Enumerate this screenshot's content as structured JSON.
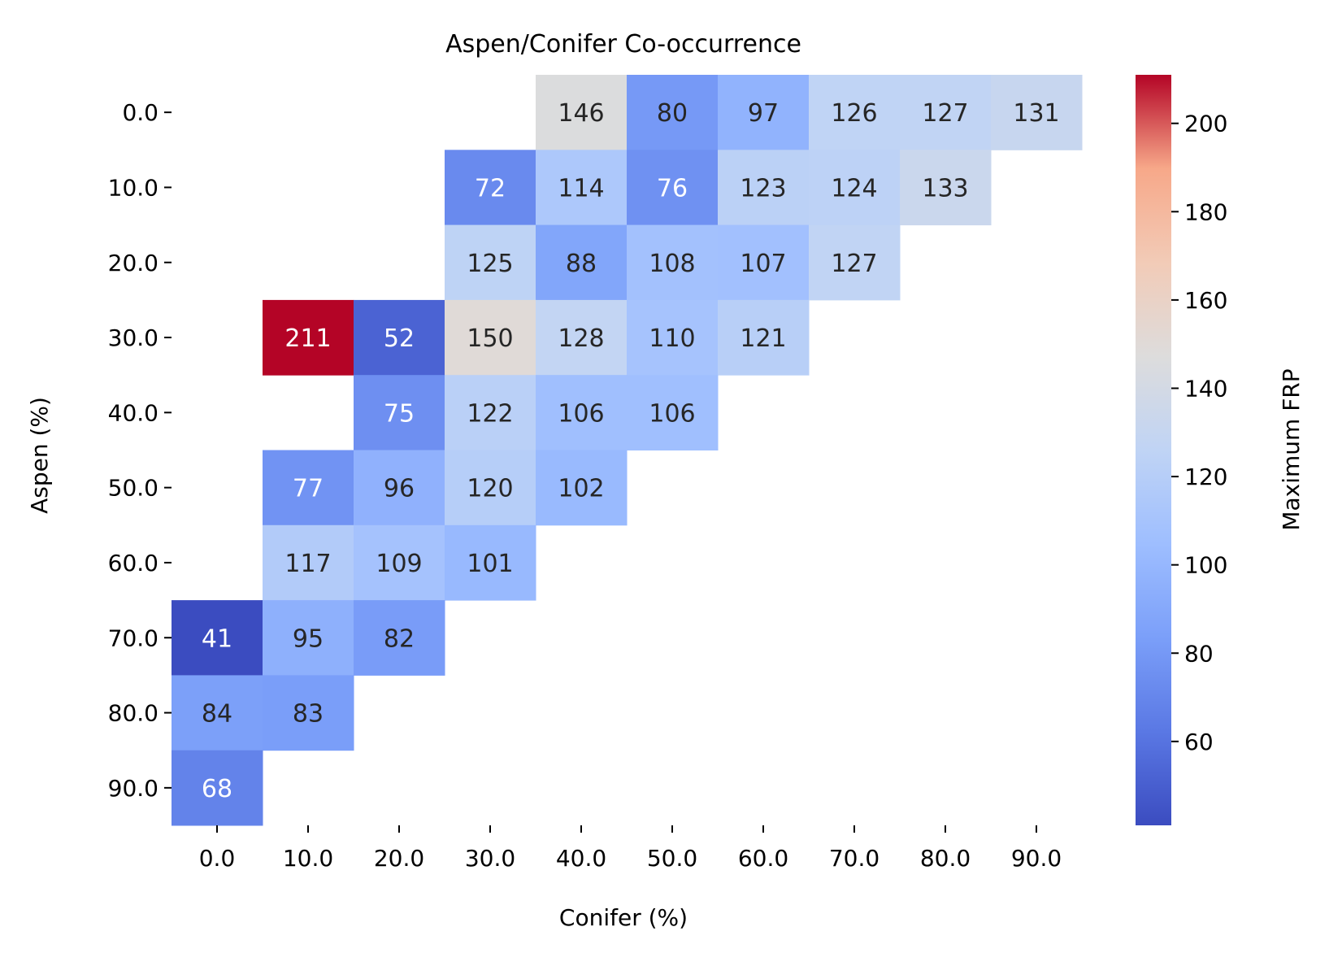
{
  "chart_data": {
    "type": "heatmap",
    "title": "Aspen/Conifer Co-occurrence",
    "xlabel": "Conifer (%)",
    "ylabel": "Aspen (%)",
    "x_categories": [
      "0.0",
      "10.0",
      "20.0",
      "30.0",
      "40.0",
      "50.0",
      "60.0",
      "70.0",
      "80.0",
      "90.0"
    ],
    "y_categories": [
      "0.0",
      "10.0",
      "20.0",
      "30.0",
      "40.0",
      "50.0",
      "60.0",
      "70.0",
      "80.0",
      "90.0"
    ],
    "values": [
      [
        null,
        null,
        null,
        null,
        146,
        80,
        97,
        126,
        127,
        131
      ],
      [
        null,
        null,
        null,
        72,
        114,
        76,
        123,
        124,
        133,
        null
      ],
      [
        null,
        null,
        null,
        125,
        88,
        108,
        107,
        127,
        null,
        null
      ],
      [
        null,
        211,
        52,
        150,
        128,
        110,
        121,
        null,
        null,
        null
      ],
      [
        null,
        null,
        75,
        122,
        106,
        106,
        null,
        null,
        null,
        null
      ],
      [
        null,
        77,
        96,
        120,
        102,
        null,
        null,
        null,
        null,
        null
      ],
      [
        null,
        117,
        109,
        101,
        null,
        null,
        null,
        null,
        null,
        null
      ],
      [
        41,
        95,
        82,
        null,
        null,
        null,
        null,
        null,
        null,
        null
      ],
      [
        84,
        83,
        null,
        null,
        null,
        null,
        null,
        null,
        null,
        null
      ],
      [
        68,
        null,
        null,
        null,
        null,
        null,
        null,
        null,
        null,
        null
      ]
    ],
    "colorbar": {
      "label": "Maximum FRP",
      "min": 41,
      "max": 211,
      "ticks": [
        60,
        80,
        100,
        120,
        140,
        160,
        180,
        200
      ],
      "colormap": "coolwarm"
    }
  }
}
